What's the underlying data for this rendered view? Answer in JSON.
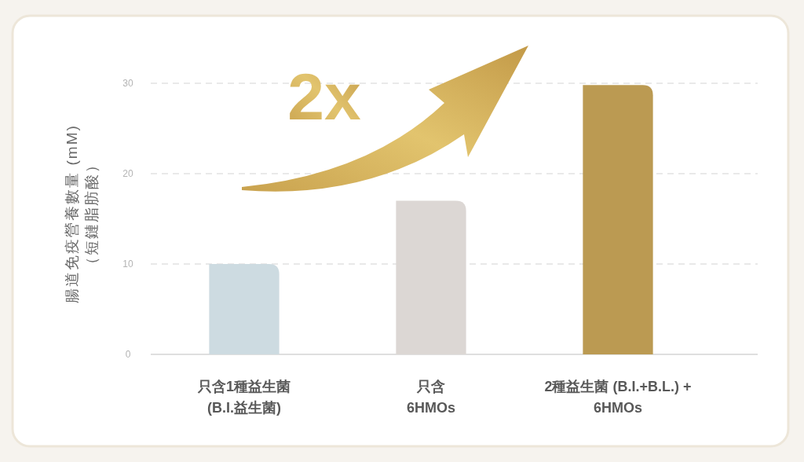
{
  "chart_data": {
    "type": "bar",
    "categories": [
      "只含1種益生菌\n(B.I.益生菌)",
      "只含\n6HMOs",
      "2種益生菌 (B.I.+B.L.) +\n6HMOs"
    ],
    "values": [
      10,
      17,
      29.8
    ],
    "colors": [
      "#cddbe1",
      "#dcd7d4",
      "#bb9a52"
    ],
    "ylabel": "腸道免疫營養數量 (mM)\n（短鏈脂肪酸）",
    "ylim": [
      0,
      30
    ],
    "yticks": [
      0,
      10,
      20,
      30
    ],
    "grid": "y",
    "annotations": [
      "2x"
    ]
  }
}
